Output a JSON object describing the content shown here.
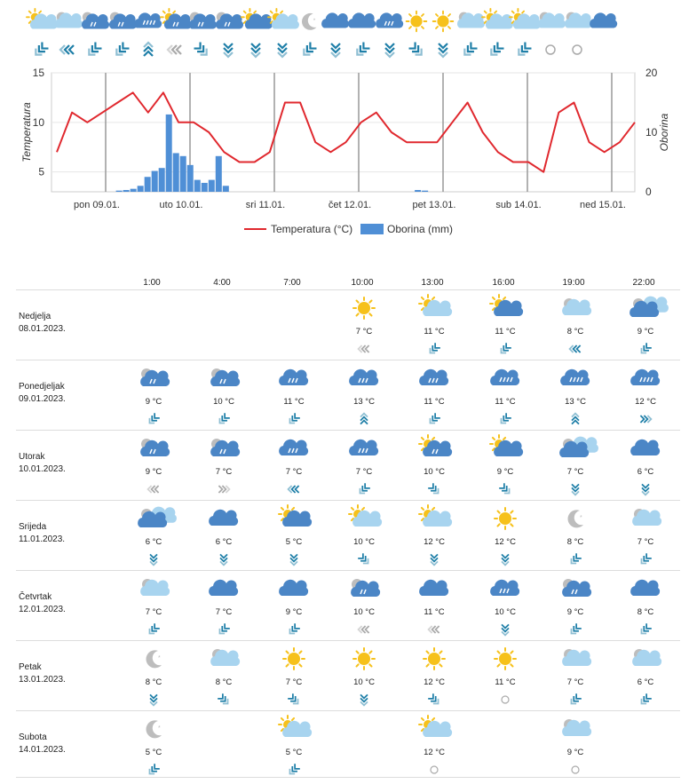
{
  "strip": [
    {
      "icon": "sun-cloud-light",
      "wind": "sw"
    },
    {
      "icon": "cloud-light",
      "wind": "w"
    },
    {
      "icon": "cloud-rain-drizzle",
      "wind": "sw"
    },
    {
      "icon": "cloud-rain-drizzle",
      "wind": "sw"
    },
    {
      "icon": "cloud-rain-heavy",
      "wind": "n"
    },
    {
      "icon": "sun-cloud-rain",
      "wind": "w-grey"
    },
    {
      "icon": "cloud-rain-drizzle",
      "wind": "se"
    },
    {
      "icon": "cloud-rain-drizzle",
      "wind": "s"
    },
    {
      "icon": "sun-cloud-blue",
      "wind": "s"
    },
    {
      "icon": "sun-cloud-light",
      "wind": "s"
    },
    {
      "icon": "moon",
      "wind": "sw"
    },
    {
      "icon": "cloud-blue",
      "wind": "s"
    },
    {
      "icon": "cloud-blue",
      "wind": "sw"
    },
    {
      "icon": "cloud-rain",
      "wind": "s"
    },
    {
      "icon": "sun",
      "wind": "se"
    },
    {
      "icon": "sun",
      "wind": "s"
    },
    {
      "icon": "cloud-light",
      "wind": "sw"
    },
    {
      "icon": "sun-cloud-light",
      "wind": "sw"
    },
    {
      "icon": "sun-cloud-light",
      "wind": "sw"
    },
    {
      "icon": "cloud-light",
      "wind": "calm"
    },
    {
      "icon": "cloud-light",
      "wind": "calm"
    },
    {
      "icon": "cloud-blue",
      "wind": "none"
    }
  ],
  "chart_data": {
    "type": "line",
    "x_day_labels": [
      "pon 09.01.",
      "uto 10.01.",
      "sri 11.01.",
      "čet 12.01.",
      "pet 13.01.",
      "sub 14.01.",
      "ned 15.01."
    ],
    "ylabel_left": "Temperatura",
    "ylabel_right": "Oborina",
    "y_left_ticks": [
      "15",
      "10",
      "5"
    ],
    "y_right_ticks": [
      "20",
      "10",
      "0"
    ],
    "ylim_left": [
      3,
      15
    ],
    "ylim_right": [
      0,
      20
    ],
    "series": [
      {
        "name": "Temperatura (°C)",
        "color": "#e0282e",
        "kind": "line",
        "values": [
          7,
          11,
          10,
          11,
          12,
          13,
          11,
          13,
          10,
          10,
          9,
          7,
          6,
          6,
          7,
          12,
          12,
          8,
          7,
          8,
          10,
          11,
          9,
          8,
          8,
          8,
          10,
          12,
          9,
          7,
          6,
          6,
          5,
          11,
          12,
          8,
          7,
          8,
          10
        ]
      },
      {
        "name": "Oborina (mm)",
        "color": "#4f8fd6",
        "kind": "bar",
        "values": [
          0,
          0,
          0,
          0,
          0,
          0,
          0,
          0,
          0,
          0.2,
          0.3,
          0.5,
          1,
          2.5,
          3.5,
          4,
          13,
          6.5,
          6,
          4.5,
          2,
          1.5,
          2,
          6,
          1,
          0,
          0,
          0,
          0,
          0,
          0,
          0,
          0,
          0,
          0,
          0,
          0,
          0,
          0,
          0,
          0,
          0,
          0,
          0,
          0,
          0,
          0,
          0,
          0,
          0,
          0,
          0.3,
          0.2,
          0,
          0,
          0,
          0,
          0,
          0,
          0,
          0,
          0,
          0,
          0,
          0,
          0,
          0,
          0,
          0,
          0,
          0,
          0,
          0,
          0,
          0,
          0,
          0,
          0,
          0,
          0,
          0,
          0
        ]
      }
    ],
    "legend_position": "bottom-center"
  },
  "table": {
    "hours": [
      "1:00",
      "4:00",
      "7:00",
      "10:00",
      "13:00",
      "16:00",
      "19:00",
      "22:00"
    ],
    "days": [
      {
        "name": "Nedjelja",
        "date": "08.01.2023.",
        "cells": [
          null,
          null,
          null,
          {
            "icon": "sun",
            "temp": "7 °C",
            "wind": "w-grey"
          },
          {
            "icon": "sun-cloud-light",
            "temp": "11 °C",
            "wind": "sw"
          },
          {
            "icon": "sun-cloud-blue",
            "temp": "11 °C",
            "wind": "sw"
          },
          {
            "icon": "cloud-light",
            "temp": "8 °C",
            "wind": "w"
          },
          {
            "icon": "cloud-mixed",
            "temp": "9 °C",
            "wind": "sw"
          }
        ]
      },
      {
        "name": "Ponedjeljak",
        "date": "09.01.2023.",
        "cells": [
          {
            "icon": "cloud-rain-drizzle",
            "temp": "9 °C",
            "wind": "sw"
          },
          {
            "icon": "cloud-rain-drizzle",
            "temp": "10 °C",
            "wind": "sw"
          },
          {
            "icon": "cloud-rain",
            "temp": "11 °C",
            "wind": "sw"
          },
          {
            "icon": "cloud-rain",
            "temp": "13 °C",
            "wind": "n"
          },
          {
            "icon": "cloud-rain",
            "temp": "11 °C",
            "wind": "sw"
          },
          {
            "icon": "cloud-rain-heavy",
            "temp": "11 °C",
            "wind": "sw"
          },
          {
            "icon": "cloud-rain-heavy",
            "temp": "13 °C",
            "wind": "n"
          },
          {
            "icon": "cloud-rain-heavy",
            "temp": "12 °C",
            "wind": "e"
          }
        ]
      },
      {
        "name": "Utorak",
        "date": "10.01.2023.",
        "cells": [
          {
            "icon": "cloud-rain-drizzle",
            "temp": "9 °C",
            "wind": "w-grey"
          },
          {
            "icon": "cloud-rain-drizzle",
            "temp": "7 °C",
            "wind": "e-grey"
          },
          {
            "icon": "cloud-rain",
            "temp": "7 °C",
            "wind": "w"
          },
          {
            "icon": "cloud-rain",
            "temp": "7 °C",
            "wind": "sw"
          },
          {
            "icon": "sun-cloud-rain",
            "temp": "10 °C",
            "wind": "se"
          },
          {
            "icon": "sun-cloud-blue",
            "temp": "9 °C",
            "wind": "se"
          },
          {
            "icon": "cloud-mixed",
            "temp": "7 °C",
            "wind": "s"
          },
          {
            "icon": "cloud-blue",
            "temp": "6 °C",
            "wind": "s"
          }
        ]
      },
      {
        "name": "Srijeda",
        "date": "11.01.2023.",
        "cells": [
          {
            "icon": "cloud-mixed",
            "temp": "6 °C",
            "wind": "s"
          },
          {
            "icon": "cloud-blue",
            "temp": "6 °C",
            "wind": "s"
          },
          {
            "icon": "sun-cloud-blue",
            "temp": "5 °C",
            "wind": "s"
          },
          {
            "icon": "sun-cloud-light",
            "temp": "10 °C",
            "wind": "se"
          },
          {
            "icon": "sun-cloud-light",
            "temp": "12 °C",
            "wind": "s"
          },
          {
            "icon": "sun",
            "temp": "12 °C",
            "wind": "s"
          },
          {
            "icon": "moon",
            "temp": "8 °C",
            "wind": "sw"
          },
          {
            "icon": "cloud-light",
            "temp": "7 °C",
            "wind": "sw"
          }
        ]
      },
      {
        "name": "Četvrtak",
        "date": "12.01.2023.",
        "cells": [
          {
            "icon": "cloud-light",
            "temp": "7 °C",
            "wind": "sw"
          },
          {
            "icon": "cloud-blue",
            "temp": "7 °C",
            "wind": "sw"
          },
          {
            "icon": "cloud-blue",
            "temp": "9 °C",
            "wind": "sw"
          },
          {
            "icon": "cloud-rain-drizzle",
            "temp": "10 °C",
            "wind": "w-grey"
          },
          {
            "icon": "cloud-blue",
            "temp": "11 °C",
            "wind": "w-grey"
          },
          {
            "icon": "cloud-rain",
            "temp": "10 °C",
            "wind": "s"
          },
          {
            "icon": "cloud-rain-drizzle",
            "temp": "9 °C",
            "wind": "sw"
          },
          {
            "icon": "cloud-blue",
            "temp": "8 °C",
            "wind": "sw"
          }
        ]
      },
      {
        "name": "Petak",
        "date": "13.01.2023.",
        "cells": [
          {
            "icon": "moon",
            "temp": "8 °C",
            "wind": "s"
          },
          {
            "icon": "cloud-light",
            "temp": "8 °C",
            "wind": "se"
          },
          {
            "icon": "sun",
            "temp": "7 °C",
            "wind": "se"
          },
          {
            "icon": "sun",
            "temp": "10 °C",
            "wind": "s"
          },
          {
            "icon": "sun",
            "temp": "12 °C",
            "wind": "se"
          },
          {
            "icon": "sun",
            "temp": "11 °C",
            "wind": "calm"
          },
          {
            "icon": "cloud-light",
            "temp": "7 °C",
            "wind": "sw"
          },
          {
            "icon": "cloud-light",
            "temp": "6 °C",
            "wind": "sw"
          }
        ]
      },
      {
        "name": "Subota",
        "date": "14.01.2023.",
        "cells": [
          {
            "icon": "moon",
            "temp": "5 °C",
            "wind": "sw"
          },
          null,
          {
            "icon": "sun-cloud-light",
            "temp": "5 °C",
            "wind": "sw"
          },
          null,
          {
            "icon": "sun-cloud-light",
            "temp": "12 °C",
            "wind": "calm"
          },
          null,
          {
            "icon": "cloud-light",
            "temp": "9 °C",
            "wind": "calm"
          },
          null
        ]
      }
    ]
  }
}
